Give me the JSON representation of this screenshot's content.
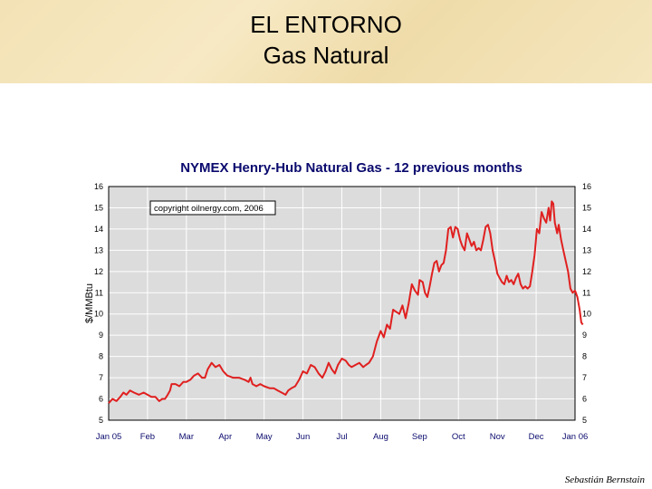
{
  "slide": {
    "title_line1": "EL ENTORNO",
    "title_line2": "Gas Natural",
    "footer": "Sebastián Bernstain"
  },
  "chart_data": {
    "type": "line",
    "title": "NYMEX Henry-Hub Natural Gas - 12 previous months",
    "ylabel": "$/MMBtu",
    "xlabel": "",
    "annotation": "copyright oilnergy.com, 2006",
    "ylim": [
      5,
      16
    ],
    "yticks": [
      5,
      6,
      7,
      8,
      9,
      10,
      11,
      12,
      13,
      14,
      15,
      16
    ],
    "xticks": [
      "Jan 05",
      "Feb",
      "Mar",
      "Apr",
      "May",
      "Jun",
      "Jul",
      "Aug",
      "Sep",
      "Oct",
      "Nov",
      "Dec",
      "Jan 06"
    ],
    "grid": true,
    "colors": {
      "line": "#e02020",
      "plot_bg": "#dcdcdc",
      "title": "#0a0a6e",
      "frame": "#000000"
    },
    "series": [
      {
        "values": [
          [
            0.0,
            5.8
          ],
          [
            0.1,
            6.0
          ],
          [
            0.2,
            5.9
          ],
          [
            0.3,
            6.1
          ],
          [
            0.38,
            6.3
          ],
          [
            0.46,
            6.2
          ],
          [
            0.55,
            6.4
          ],
          [
            0.65,
            6.3
          ],
          [
            0.78,
            6.2
          ],
          [
            0.9,
            6.3
          ],
          [
            1.0,
            6.2
          ],
          [
            1.1,
            6.1
          ],
          [
            1.2,
            6.1
          ],
          [
            1.3,
            5.9
          ],
          [
            1.38,
            6.0
          ],
          [
            1.45,
            6.0
          ],
          [
            1.52,
            6.2
          ],
          [
            1.58,
            6.4
          ],
          [
            1.62,
            6.7
          ],
          [
            1.72,
            6.7
          ],
          [
            1.82,
            6.6
          ],
          [
            1.92,
            6.8
          ],
          [
            2.0,
            6.8
          ],
          [
            2.1,
            6.9
          ],
          [
            2.2,
            7.1
          ],
          [
            2.3,
            7.2
          ],
          [
            2.4,
            7.0
          ],
          [
            2.48,
            7.0
          ],
          [
            2.55,
            7.4
          ],
          [
            2.65,
            7.7
          ],
          [
            2.75,
            7.5
          ],
          [
            2.85,
            7.6
          ],
          [
            2.95,
            7.3
          ],
          [
            3.05,
            7.1
          ],
          [
            3.2,
            7.0
          ],
          [
            3.35,
            7.0
          ],
          [
            3.5,
            6.9
          ],
          [
            3.6,
            6.8
          ],
          [
            3.65,
            7.0
          ],
          [
            3.7,
            6.7
          ],
          [
            3.8,
            6.6
          ],
          [
            3.9,
            6.7
          ],
          [
            4.0,
            6.6
          ],
          [
            4.15,
            6.5
          ],
          [
            4.25,
            6.5
          ],
          [
            4.35,
            6.4
          ],
          [
            4.45,
            6.3
          ],
          [
            4.55,
            6.2
          ],
          [
            4.62,
            6.4
          ],
          [
            4.7,
            6.5
          ],
          [
            4.8,
            6.6
          ],
          [
            4.9,
            6.9
          ],
          [
            5.0,
            7.3
          ],
          [
            5.1,
            7.2
          ],
          [
            5.2,
            7.6
          ],
          [
            5.3,
            7.5
          ],
          [
            5.4,
            7.2
          ],
          [
            5.5,
            7.0
          ],
          [
            5.58,
            7.3
          ],
          [
            5.66,
            7.7
          ],
          [
            5.74,
            7.4
          ],
          [
            5.82,
            7.2
          ],
          [
            5.9,
            7.6
          ],
          [
            6.0,
            7.9
          ],
          [
            6.1,
            7.8
          ],
          [
            6.18,
            7.6
          ],
          [
            6.25,
            7.5
          ],
          [
            6.35,
            7.6
          ],
          [
            6.45,
            7.7
          ],
          [
            6.55,
            7.5
          ],
          [
            6.62,
            7.6
          ],
          [
            6.7,
            7.7
          ],
          [
            6.8,
            8.0
          ],
          [
            6.9,
            8.7
          ],
          [
            7.0,
            9.2
          ],
          [
            7.08,
            8.9
          ],
          [
            7.16,
            9.5
          ],
          [
            7.24,
            9.3
          ],
          [
            7.32,
            10.2
          ],
          [
            7.4,
            10.1
          ],
          [
            7.48,
            10.0
          ],
          [
            7.56,
            10.4
          ],
          [
            7.64,
            9.8
          ],
          [
            7.72,
            10.5
          ],
          [
            7.8,
            11.4
          ],
          [
            7.88,
            11.1
          ],
          [
            7.96,
            10.9
          ],
          [
            8.0,
            11.6
          ],
          [
            8.08,
            11.5
          ],
          [
            8.14,
            11.0
          ],
          [
            8.2,
            10.8
          ],
          [
            8.26,
            11.3
          ],
          [
            8.32,
            11.9
          ],
          [
            8.38,
            12.4
          ],
          [
            8.44,
            12.5
          ],
          [
            8.5,
            12.0
          ],
          [
            8.56,
            12.3
          ],
          [
            8.62,
            12.4
          ],
          [
            8.68,
            13.0
          ],
          [
            8.74,
            14.0
          ],
          [
            8.8,
            14.1
          ],
          [
            8.86,
            13.6
          ],
          [
            8.92,
            14.1
          ],
          [
            8.98,
            14.0
          ],
          [
            9.04,
            13.5
          ],
          [
            9.1,
            13.2
          ],
          [
            9.16,
            13.0
          ],
          [
            9.22,
            13.8
          ],
          [
            9.28,
            13.5
          ],
          [
            9.34,
            13.2
          ],
          [
            9.4,
            13.4
          ],
          [
            9.46,
            13.0
          ],
          [
            9.52,
            13.1
          ],
          [
            9.58,
            13.0
          ],
          [
            9.64,
            13.5
          ],
          [
            9.7,
            14.1
          ],
          [
            9.76,
            14.2
          ],
          [
            9.82,
            13.8
          ],
          [
            9.88,
            13.0
          ],
          [
            9.94,
            12.5
          ],
          [
            10.0,
            11.9
          ],
          [
            10.06,
            11.7
          ],
          [
            10.12,
            11.5
          ],
          [
            10.18,
            11.4
          ],
          [
            10.24,
            11.8
          ],
          [
            10.3,
            11.5
          ],
          [
            10.36,
            11.6
          ],
          [
            10.42,
            11.4
          ],
          [
            10.48,
            11.7
          ],
          [
            10.54,
            11.9
          ],
          [
            10.6,
            11.4
          ],
          [
            10.66,
            11.2
          ],
          [
            10.72,
            11.3
          ],
          [
            10.78,
            11.2
          ],
          [
            10.84,
            11.3
          ],
          [
            10.9,
            12.0
          ],
          [
            10.96,
            12.8
          ],
          [
            11.02,
            14.0
          ],
          [
            11.08,
            13.8
          ],
          [
            11.14,
            14.8
          ],
          [
            11.2,
            14.5
          ],
          [
            11.26,
            14.3
          ],
          [
            11.32,
            15.0
          ],
          [
            11.36,
            14.4
          ],
          [
            11.4,
            15.3
          ],
          [
            11.44,
            15.2
          ],
          [
            11.48,
            14.3
          ],
          [
            11.54,
            13.8
          ],
          [
            11.58,
            14.2
          ],
          [
            11.64,
            13.5
          ],
          [
            11.7,
            13.0
          ],
          [
            11.76,
            12.5
          ],
          [
            11.82,
            12.0
          ],
          [
            11.88,
            11.2
          ],
          [
            11.94,
            11.0
          ],
          [
            12.0,
            11.1
          ],
          [
            12.06,
            10.8
          ],
          [
            12.12,
            10.2
          ],
          [
            12.16,
            9.6
          ],
          [
            12.2,
            9.5
          ]
        ]
      }
    ]
  }
}
